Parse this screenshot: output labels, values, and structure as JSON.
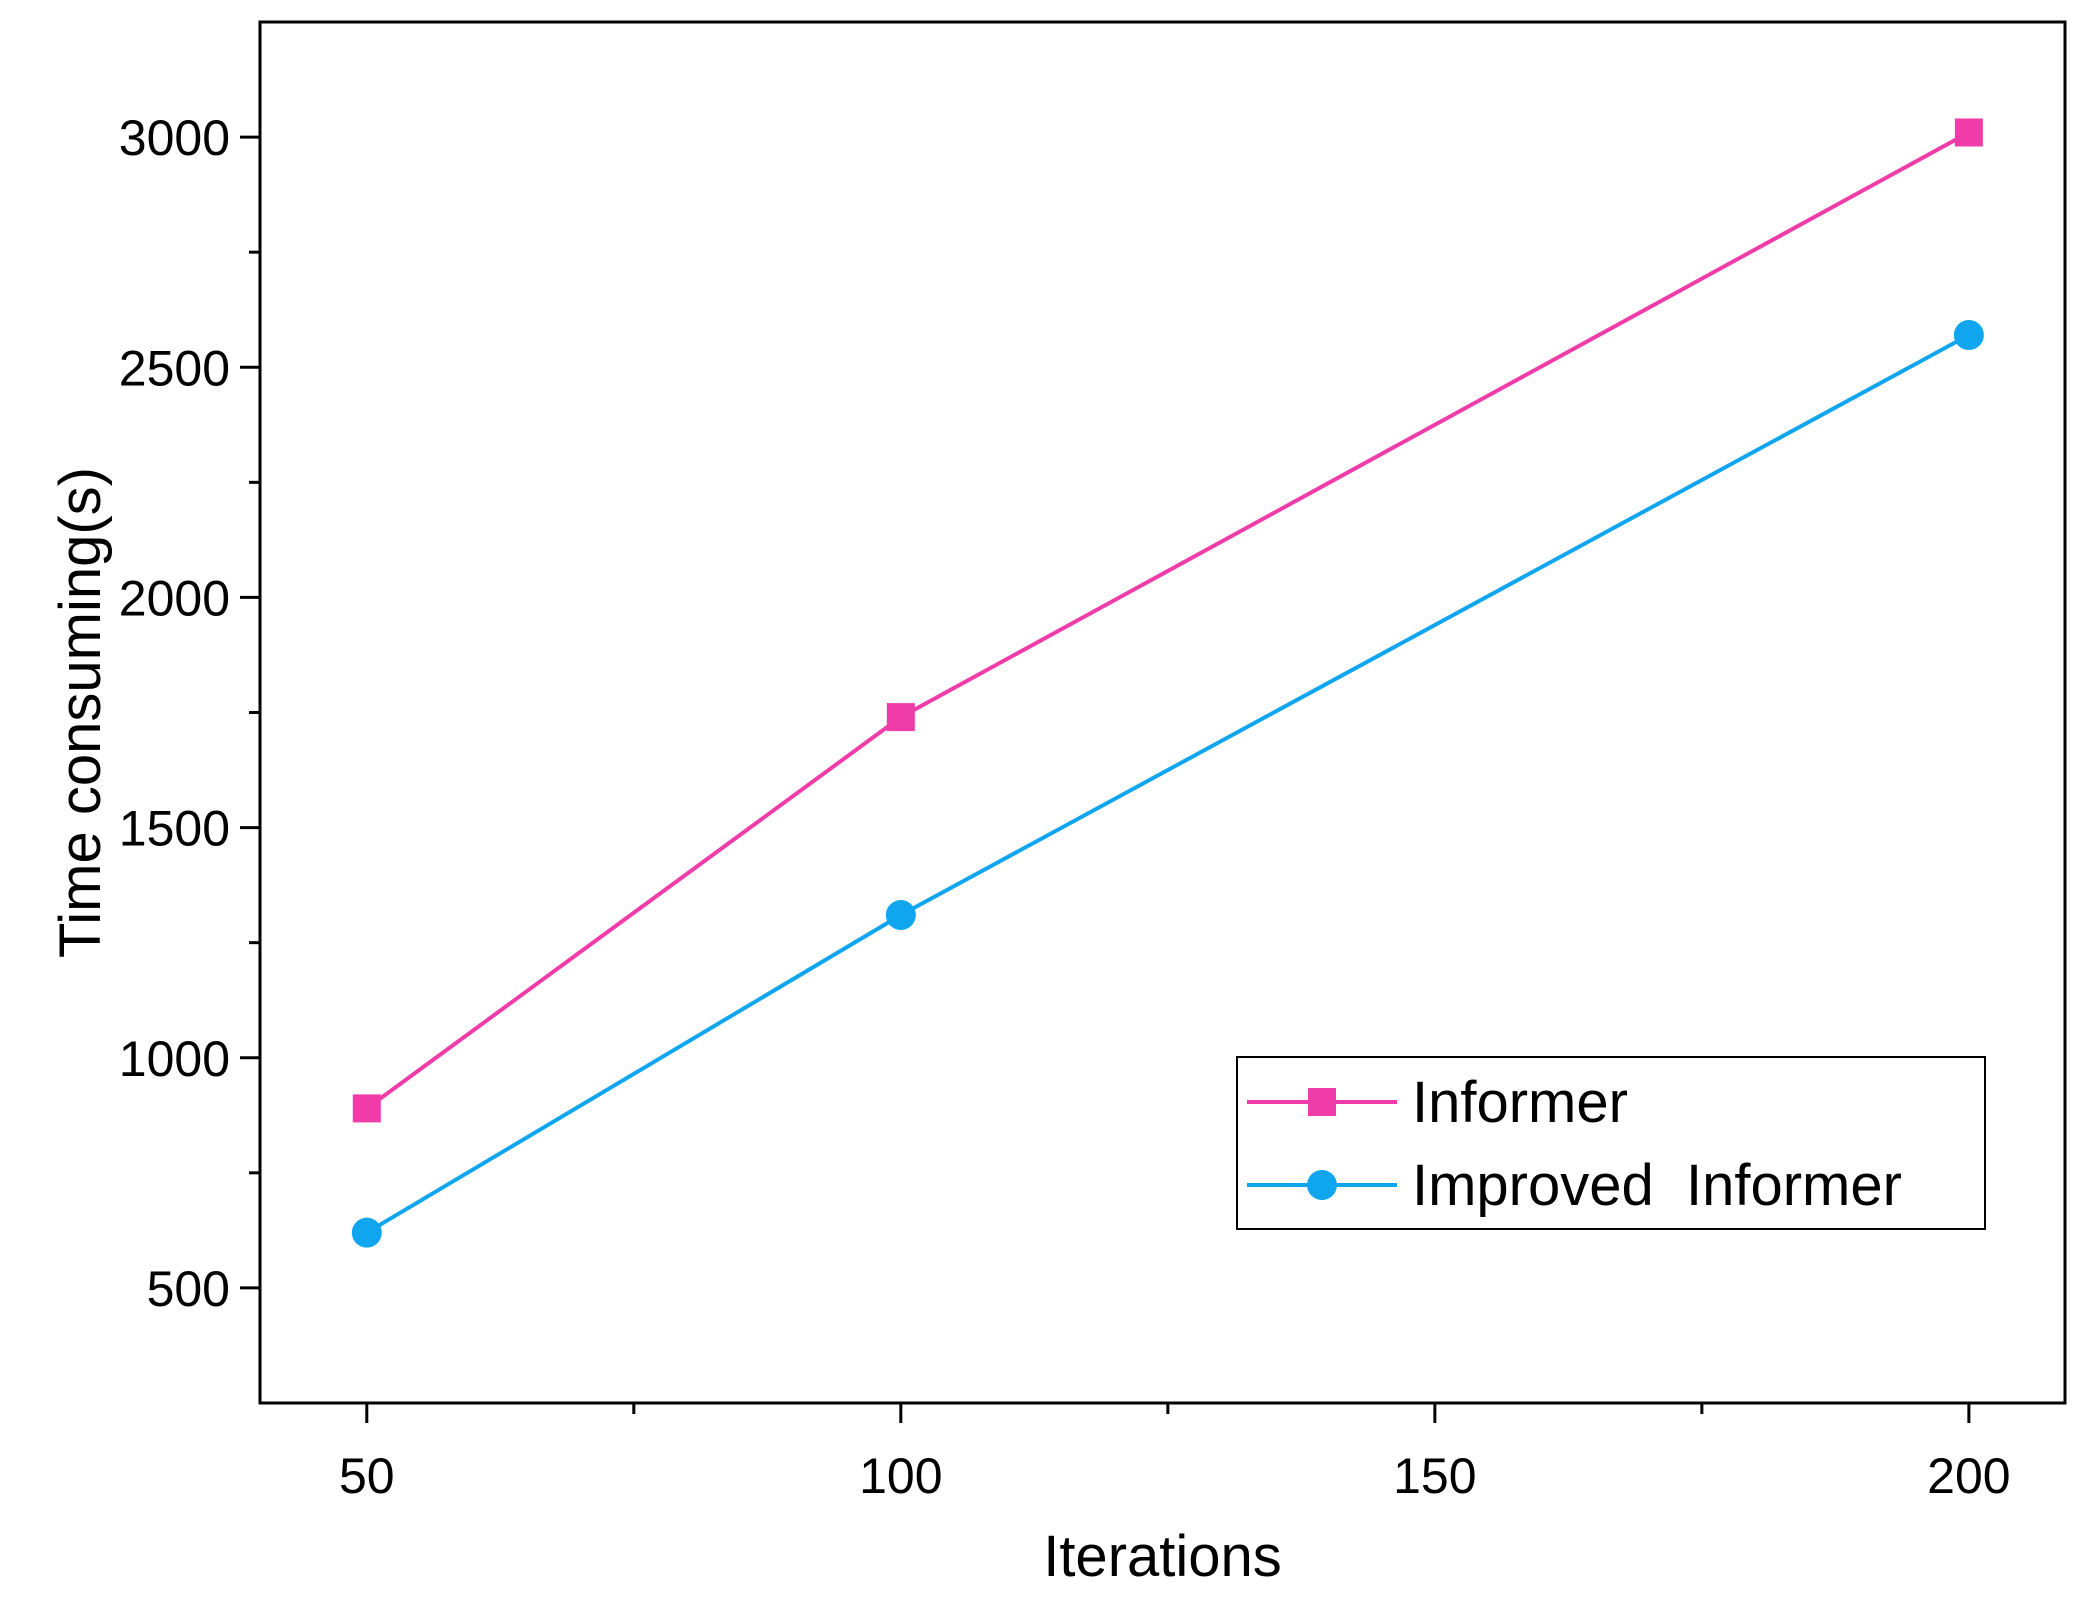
{
  "chart_data": {
    "type": "line",
    "title": "",
    "xlabel": "Iterations",
    "ylabel": "Time consuming(s)",
    "xlim": [
      40,
      209
    ],
    "ylim": [
      250,
      3250
    ],
    "xticks": [
      50,
      100,
      150,
      200
    ],
    "xtick_labels": [
      "50",
      "100",
      "150",
      "200"
    ],
    "x_minor_ticks": [
      75,
      125,
      175
    ],
    "yticks": [
      500,
      1000,
      1500,
      2000,
      2500,
      3000
    ],
    "ytick_labels": [
      "500",
      "1000",
      "1500",
      "2000",
      "2500",
      "3000"
    ],
    "y_minor_ticks": [
      750,
      1250,
      1750,
      2250,
      2750
    ],
    "grid": false,
    "legend_position": "bottom-right",
    "series": [
      {
        "name": "Informer",
        "marker": "square",
        "color": "#f03ca8",
        "x": [
          50,
          100,
          200
        ],
        "values": [
          890,
          1740,
          3010
        ]
      },
      {
        "name": "Improved  Informer",
        "marker": "circle",
        "color": "#10a6ef",
        "x": [
          50,
          100,
          200
        ],
        "values": [
          620,
          1310,
          2570
        ]
      }
    ]
  }
}
